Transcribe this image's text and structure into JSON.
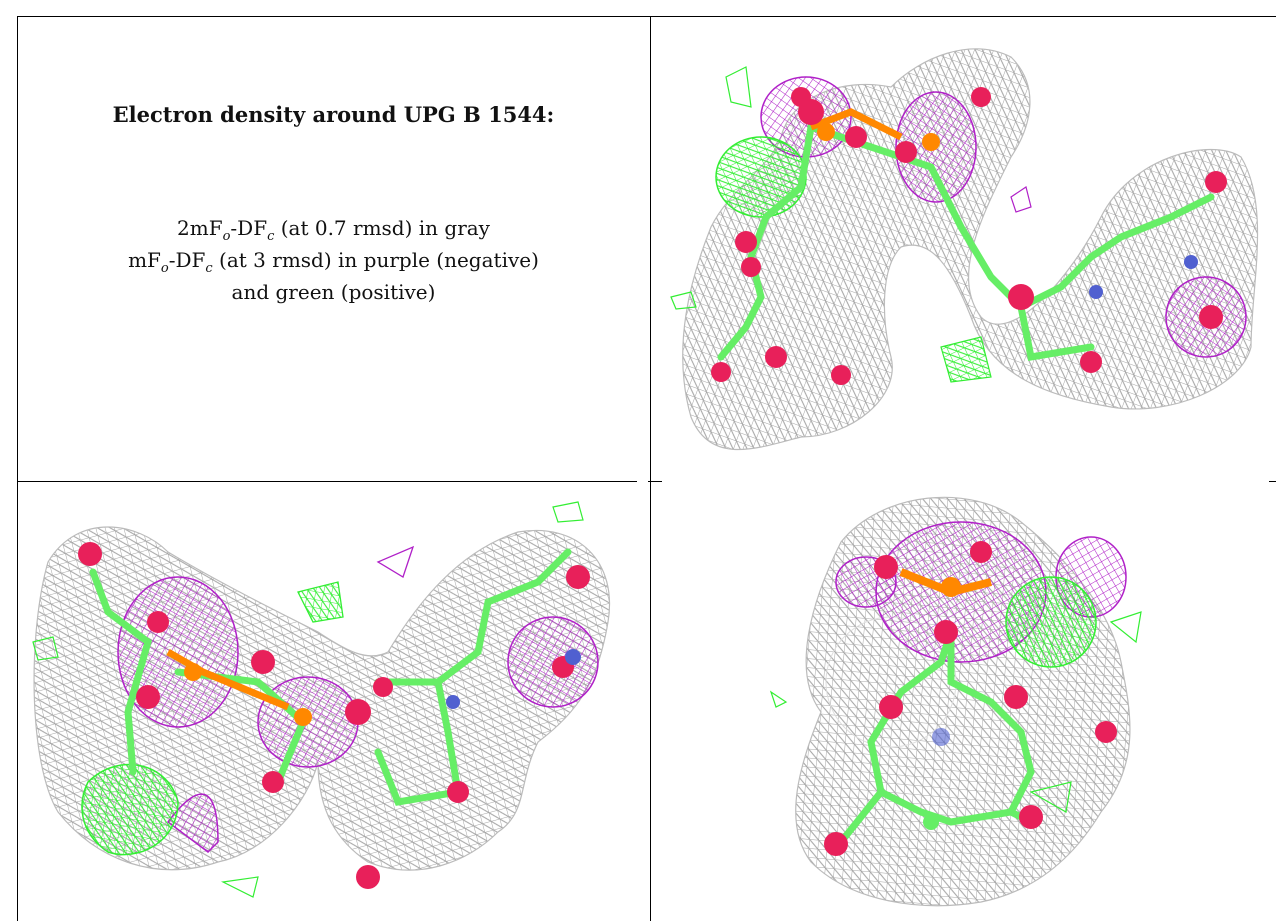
{
  "caption": {
    "title": "Electron density around UPG B 1544:",
    "line1_pre": "2mF",
    "line1_sub1": "o",
    "line1_mid": "-DF",
    "line1_sub2": "c",
    "line1_post": " (at 0.7 rmsd) in gray",
    "line2_pre": "mF",
    "line2_sub1": "o",
    "line2_mid": "-DF",
    "line2_sub2": "c",
    "line2_post": " (at 3 rmsd) in purple (negative)",
    "line3": "and green (positive)"
  },
  "colors": {
    "density_2fofc": "#9a9a9a",
    "density_negative": "#b020c8",
    "density_positive": "#33ee33",
    "carbon": "#66ee66",
    "oxygen": "#e8205a",
    "phosphorus": "#ff8800",
    "nitrogen": "#5060d0"
  },
  "panels": [
    {
      "name": "view-top-right"
    },
    {
      "name": "view-bottom-left"
    },
    {
      "name": "view-bottom-right"
    }
  ]
}
